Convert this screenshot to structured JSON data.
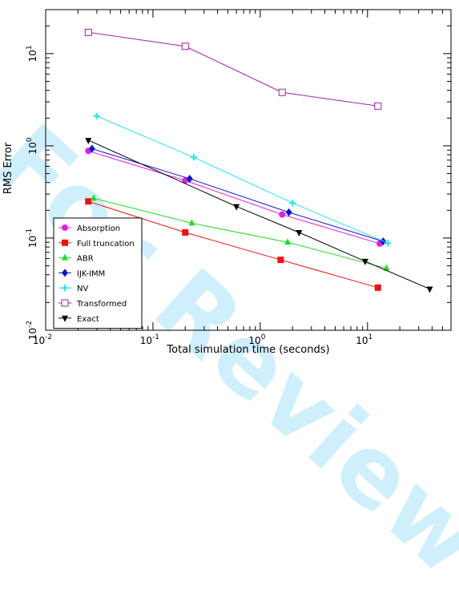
{
  "watermark": "For Review",
  "chart_data": {
    "type": "line",
    "xlabel": "Total simulation time (seconds)",
    "ylabel": "RMS Error",
    "xscale": "log",
    "yscale": "log",
    "xlim": [
      0.01,
      60
    ],
    "ylim": [
      0.01,
      30
    ],
    "xticks": [
      {
        "value": 0.01,
        "base": "10",
        "exp": "-2"
      },
      {
        "value": 0.1,
        "base": "10",
        "exp": "-1"
      },
      {
        "value": 1,
        "base": "10",
        "exp": "0"
      },
      {
        "value": 10,
        "base": "10",
        "exp": "1"
      }
    ],
    "yticks": [
      {
        "value": 0.01,
        "base": "10",
        "exp": "-2"
      },
      {
        "value": 0.1,
        "base": "10",
        "exp": "-1"
      },
      {
        "value": 1,
        "base": "10",
        "exp": "0"
      },
      {
        "value": 10,
        "base": "10",
        "exp": "1"
      }
    ],
    "legend_position": "bottom-left",
    "series": [
      {
        "name": "Absorption",
        "color": "#e020e0",
        "marker": "circle",
        "x": [
          0.025,
          0.2,
          1.6,
          13
        ],
        "y": [
          0.88,
          0.42,
          0.18,
          0.087
        ]
      },
      {
        "name": "Full truncation",
        "color": "#ee1111",
        "marker": "square",
        "x": [
          0.025,
          0.2,
          1.55,
          12.5
        ],
        "y": [
          0.25,
          0.115,
          0.058,
          0.029
        ]
      },
      {
        "name": "ABR",
        "color": "#22dd22",
        "marker": "triangle",
        "x": [
          0.028,
          0.23,
          1.8,
          15
        ],
        "y": [
          0.27,
          0.145,
          0.09,
          0.047
        ]
      },
      {
        "name": "IJK-IMM",
        "color": "#1111cc",
        "marker": "diamond",
        "x": [
          0.027,
          0.22,
          1.85,
          14
        ],
        "y": [
          0.93,
          0.44,
          0.19,
          0.092
        ]
      },
      {
        "name": "NV",
        "color": "#22e5ee",
        "marker": "plus",
        "x": [
          0.03,
          0.24,
          2.0,
          15.5
        ],
        "y": [
          2.1,
          0.75,
          0.24,
          0.088
        ]
      },
      {
        "name": "Transformed",
        "color": "#a020a0",
        "marker": "open-square",
        "x": [
          0.025,
          0.2,
          1.6,
          12.5
        ],
        "y": [
          17,
          12,
          3.8,
          2.7
        ]
      },
      {
        "name": "Exact",
        "color": "#000000",
        "marker": "down-triangle",
        "x": [
          0.025,
          0.6,
          2.3,
          9.5,
          38
        ],
        "y": [
          1.15,
          0.22,
          0.115,
          0.056,
          0.028
        ]
      }
    ]
  }
}
